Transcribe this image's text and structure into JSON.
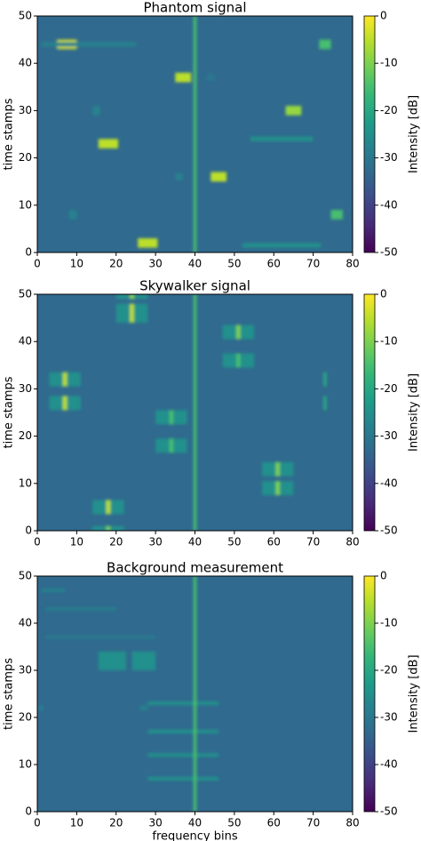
{
  "chart_data": [
    {
      "type": "heatmap",
      "title": "Phantom signal",
      "ylabel": "time stamps",
      "colorbar_label": "Intensity [dB]",
      "xlim": [
        0,
        80
      ],
      "ylim": [
        0,
        50
      ],
      "xticks": [
        0,
        10,
        20,
        30,
        40,
        50,
        60,
        70,
        80
      ],
      "yticks": [
        0,
        10,
        20,
        30,
        40,
        50
      ],
      "clim": [
        -50,
        0
      ],
      "cticks": [
        0,
        -10,
        -20,
        -30,
        -40,
        -50
      ],
      "colormap": "viridis",
      "background": -33,
      "cells": {
        "x": [
          7.5,
          37,
          65,
          18,
          46,
          76,
          28,
          73,
          62,
          62,
          15,
          36,
          9,
          44,
          13,
          40
        ],
        "y": [
          44,
          37,
          30,
          23,
          16,
          8,
          2,
          44,
          24,
          1.5,
          30,
          16,
          8,
          37,
          44,
          25
        ],
        "width": [
          5,
          4,
          4,
          5,
          4,
          3,
          5,
          3,
          16,
          20,
          2,
          2,
          2,
          2,
          24,
          0.8
        ],
        "height": [
          2,
          2,
          2,
          2,
          2,
          2,
          2,
          2,
          1,
          1,
          2,
          1.5,
          2,
          1.5,
          1,
          50
        ],
        "values": [
          -3,
          -5,
          -8,
          -5,
          -5,
          -15,
          -5,
          -15,
          -25,
          -25,
          -28,
          -28,
          -28,
          -30,
          -28,
          -15
        ]
      }
    },
    {
      "type": "heatmap",
      "title": "Skywalker signal",
      "ylabel": "time stamps",
      "colorbar_label": "Intensity [dB]",
      "xlim": [
        0,
        80
      ],
      "ylim": [
        0,
        50
      ],
      "xticks": [
        0,
        10,
        20,
        30,
        40,
        50,
        60,
        70,
        80
      ],
      "yticks": [
        0,
        10,
        20,
        30,
        40,
        50
      ],
      "clim": [
        -50,
        0
      ],
      "cticks": [
        0,
        -10,
        -20,
        -30,
        -40,
        -50
      ],
      "colormap": "viridis",
      "background": -33,
      "cells": {
        "x": [
          24,
          24,
          24,
          24,
          51,
          51,
          51,
          51,
          7,
          7,
          7,
          7,
          34,
          34,
          34,
          34,
          61,
          61,
          61,
          61,
          18,
          18,
          18,
          18,
          73,
          73,
          40
        ],
        "y": [
          46,
          46,
          49.5,
          49.5,
          42,
          42,
          36,
          36,
          32,
          32,
          27,
          27,
          24,
          24,
          18,
          18,
          13,
          13,
          9,
          9,
          5,
          5,
          0.5,
          0.5,
          32,
          27,
          25
        ],
        "width": [
          8,
          1,
          8,
          1,
          8,
          1,
          8,
          1,
          8,
          1,
          8,
          1,
          8,
          1,
          8,
          1,
          8,
          1,
          8,
          1,
          8,
          1,
          8,
          1,
          0.8,
          0.8,
          0.8
        ],
        "height": [
          4,
          4,
          1,
          1,
          3,
          3,
          3,
          3,
          3,
          3,
          3,
          3,
          3,
          3,
          3,
          3,
          3,
          3,
          3,
          3,
          3,
          3,
          1,
          1,
          3,
          3,
          50
        ],
        "values": [
          -25,
          -5,
          -25,
          -8,
          -25,
          -10,
          -25,
          -15,
          -25,
          -5,
          -25,
          -5,
          -25,
          -15,
          -25,
          -15,
          -25,
          -10,
          -25,
          -10,
          -25,
          -5,
          -25,
          -10,
          -20,
          -20,
          -15
        ]
      }
    },
    {
      "type": "heatmap",
      "title": "Background measurement",
      "xlabel": "frequency bins",
      "ylabel": "time stamps",
      "colorbar_label": "Intensity [dB]",
      "xlim": [
        0,
        80
      ],
      "ylim": [
        0,
        50
      ],
      "xticks": [
        0,
        10,
        20,
        30,
        40,
        50,
        60,
        70,
        80
      ],
      "yticks": [
        0,
        10,
        20,
        30,
        40,
        50
      ],
      "clim": [
        -50,
        0
      ],
      "cticks": [
        0,
        -10,
        -20,
        -30,
        -40,
        -50
      ],
      "colormap": "viridis",
      "background": -33,
      "cells": {
        "x": [
          19,
          27,
          37,
          37,
          37,
          37,
          11,
          16,
          4,
          1,
          27,
          40
        ],
        "y": [
          32,
          32,
          23,
          17,
          12,
          7,
          43,
          37,
          47,
          22,
          22,
          25
        ],
        "width": [
          7,
          6,
          18,
          18,
          18,
          18,
          18,
          28,
          6,
          1,
          2,
          0.8
        ],
        "height": [
          4,
          4,
          0.8,
          0.8,
          0.8,
          0.8,
          0.8,
          0.8,
          0.8,
          1,
          1,
          50
        ],
        "values": [
          -25,
          -25,
          -25,
          -25,
          -25,
          -25,
          -29,
          -30,
          -28,
          -28,
          -28,
          -15
        ]
      }
    }
  ]
}
